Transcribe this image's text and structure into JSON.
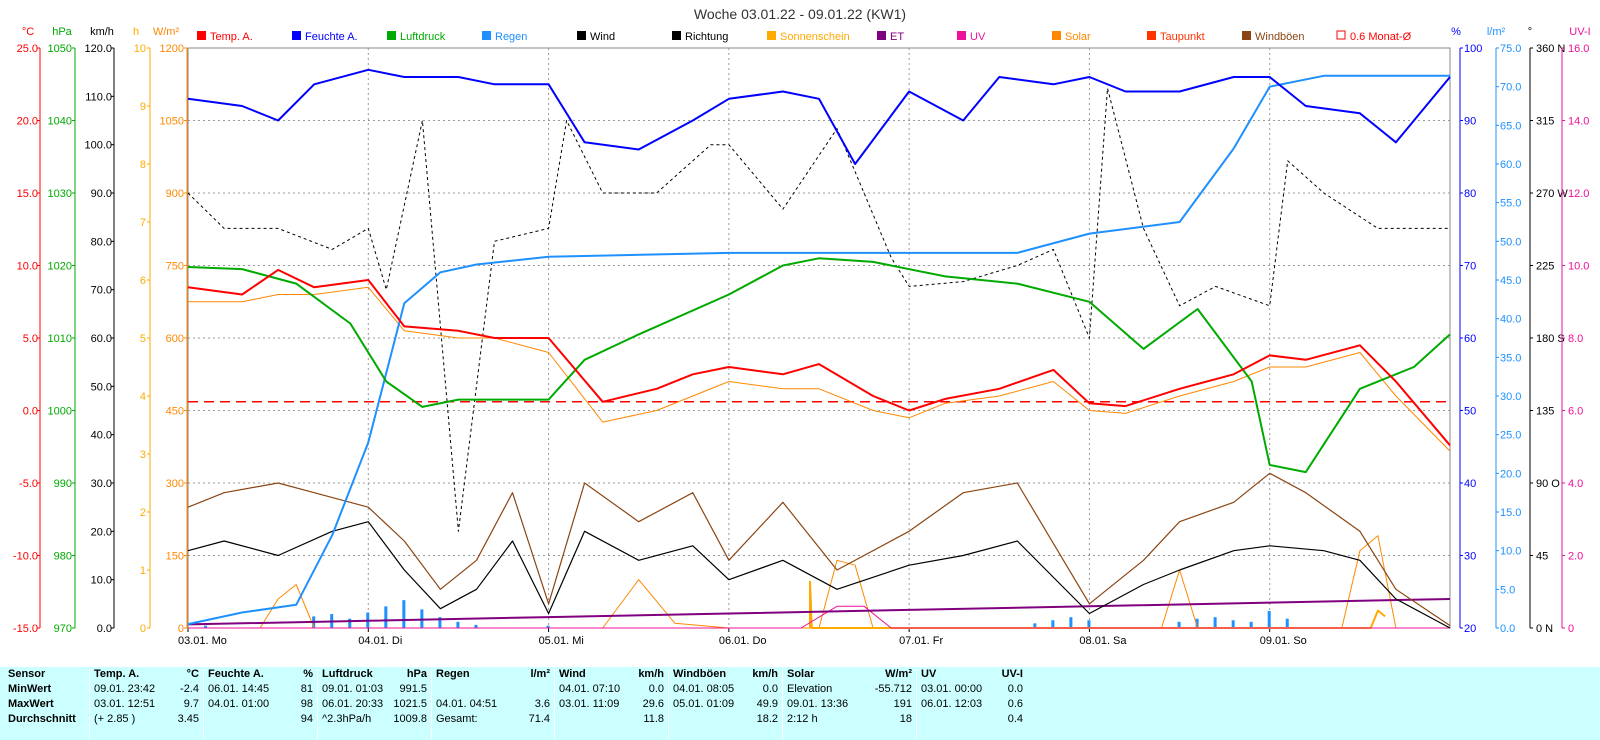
{
  "title": "Woche 03.01.22 - 09.01.22 (KW1)",
  "colors": {
    "temp": "#ff0000",
    "humidity": "#0000ff",
    "pressure": "#00aa00",
    "rain": "#1e90ff",
    "wind": "#000000",
    "direction": "#000000",
    "sunshine": "#ffaa00",
    "et": "#800080",
    "uv": "#ee1199",
    "solar": "#ff8800",
    "dewpoint": "#ff3300",
    "gusts": "#8b4513",
    "avg": "#ff0000",
    "stats_bg": "#ccffff"
  },
  "legend": [
    {
      "key": "temp",
      "label": "Temp. A."
    },
    {
      "key": "humidity",
      "label": "Feuchte A."
    },
    {
      "key": "pressure",
      "label": "Luftdruck"
    },
    {
      "key": "rain",
      "label": "Regen"
    },
    {
      "key": "wind",
      "label": "Wind"
    },
    {
      "key": "direction",
      "label": "Richtung"
    },
    {
      "key": "sunshine",
      "label": "Sonnenschein"
    },
    {
      "key": "et",
      "label": "ET"
    },
    {
      "key": "uv",
      "label": "UV"
    },
    {
      "key": "solar",
      "label": "Solar"
    },
    {
      "key": "dewpoint",
      "label": "Taupunkt"
    },
    {
      "key": "gusts",
      "label": "Windböen"
    },
    {
      "key": "avg",
      "label": "0.6 Monat-Ø"
    }
  ],
  "axes": {
    "temp": {
      "unit": "°C",
      "ticks": [
        "25.0",
        "20.0",
        "15.0",
        "10.0",
        "5.0",
        "0.0",
        "-5.0",
        "-10.0",
        "-15.0"
      ]
    },
    "pressure": {
      "unit": "hPa",
      "ticks": [
        "1050",
        "1040",
        "1030",
        "1020",
        "1010",
        "1000",
        "990",
        "980",
        "970"
      ]
    },
    "wind": {
      "unit": "km/h",
      "ticks": [
        "120.0",
        "110.0",
        "100.0",
        "90.0",
        "80.0",
        "70.0",
        "60.0",
        "50.0",
        "40.0",
        "30.0",
        "20.0",
        "10.0",
        "0.0"
      ]
    },
    "sunshine": {
      "unit": "h",
      "ticks": [
        "10",
        "9",
        "8",
        "7",
        "6",
        "5",
        "4",
        "3",
        "2",
        "1",
        "0"
      ]
    },
    "solar": {
      "unit": "W/m²",
      "ticks": [
        "1200",
        "1050",
        "900",
        "750",
        "600",
        "450",
        "300",
        "150",
        "0"
      ]
    },
    "humidity": {
      "unit": "%",
      "ticks": [
        "100",
        "90",
        "80",
        "70",
        "60",
        "50",
        "40",
        "30",
        "20"
      ]
    },
    "rain": {
      "unit": "l/m²",
      "ticks": [
        "75.0",
        "70.0",
        "65.0",
        "60.0",
        "55.0",
        "50.0",
        "45.0",
        "40.0",
        "35.0",
        "30.0",
        "25.0",
        "20.0",
        "15.0",
        "10.0",
        "5.0",
        "0.0"
      ]
    },
    "direction": {
      "unit": "°",
      "ticks": [
        "360 N",
        "315",
        "270 W",
        "225",
        "180 S",
        "135",
        "90 O",
        "45",
        "0 N"
      ]
    },
    "uvi": {
      "unit": "UV-I",
      "ticks": [
        "16.0",
        "14.0",
        "12.0",
        "10.0",
        "8.0",
        "6.0",
        "4.0",
        "2.0",
        "0"
      ]
    }
  },
  "x_labels": [
    "03.01.  Mo",
    "04.01.  Di",
    "05.01.  Mi",
    "06.01.  Do",
    "07.01.  Fr",
    "08.01.  Sa",
    "09.01.  So"
  ],
  "chart_data": {
    "type": "line",
    "title": "Woche 03.01.22 - 09.01.22 (KW1)",
    "x_unit": "day index (0 = 03.01. 00:00, 7 = 10.01. 00:00)",
    "categories": [
      "03.01.  Mo",
      "04.01.  Di",
      "05.01.  Mi",
      "06.01.  Do",
      "07.01.  Fr",
      "08.01.  Sa",
      "09.01.  So"
    ],
    "monthly_avg_temp": 0.6,
    "series": [
      {
        "name": "Temp. A.",
        "axis": "temp",
        "x": [
          0,
          0.3,
          0.5,
          0.7,
          1.0,
          1.2,
          1.5,
          1.7,
          2.0,
          2.3,
          2.6,
          2.8,
          3.0,
          3.3,
          3.5,
          3.8,
          4.0,
          4.2,
          4.5,
          4.8,
          5.0,
          5.2,
          5.5,
          5.8,
          6.0,
          6.2,
          6.5,
          6.7,
          7.0
        ],
        "y": [
          8.5,
          8.0,
          9.7,
          8.5,
          9.0,
          5.8,
          5.5,
          5.0,
          5.0,
          0.6,
          1.5,
          2.5,
          3.0,
          2.5,
          3.2,
          1.0,
          0.0,
          0.8,
          1.5,
          2.8,
          0.5,
          0.3,
          1.5,
          2.5,
          3.8,
          3.5,
          4.5,
          2.0,
          -2.4
        ]
      },
      {
        "name": "Taupunkt",
        "axis": "temp",
        "x": [
          0,
          0.3,
          0.5,
          0.7,
          1.0,
          1.2,
          1.5,
          1.7,
          2.0,
          2.3,
          2.6,
          2.8,
          3.0,
          3.3,
          3.5,
          3.8,
          4.0,
          4.2,
          4.5,
          4.8,
          5.0,
          5.2,
          5.5,
          5.8,
          6.0,
          6.2,
          6.5,
          6.7,
          7.0
        ],
        "y": [
          7.5,
          7.5,
          8.0,
          8.0,
          8.5,
          5.5,
          5.0,
          5.0,
          4.0,
          -0.8,
          0.0,
          1.0,
          2.0,
          1.5,
          1.5,
          0.0,
          -0.5,
          0.5,
          1.0,
          2.0,
          0.0,
          -0.2,
          1.0,
          2.0,
          3.0,
          3.0,
          4.0,
          1.0,
          -2.8
        ]
      },
      {
        "name": "Feuchte A.",
        "axis": "humidity",
        "x": [
          0,
          0.3,
          0.5,
          0.7,
          1.0,
          1.2,
          1.5,
          1.7,
          2.0,
          2.2,
          2.5,
          2.8,
          3.0,
          3.3,
          3.5,
          3.7,
          4.0,
          4.3,
          4.5,
          4.8,
          5.0,
          5.2,
          5.5,
          5.8,
          6.0,
          6.2,
          6.5,
          6.7,
          7.0
        ],
        "y": [
          93,
          92,
          90,
          95,
          97,
          96,
          96,
          95,
          95,
          87,
          86,
          90,
          93,
          94,
          93,
          84,
          94,
          90,
          96,
          95,
          96,
          94,
          94,
          96,
          96,
          92,
          91,
          87,
          96
        ]
      },
      {
        "name": "Luftdruck",
        "axis": "pressure",
        "x": [
          0,
          0.3,
          0.6,
          0.9,
          1.1,
          1.3,
          1.5,
          2.0,
          2.2,
          2.5,
          3.0,
          3.3,
          3.5,
          3.8,
          4.2,
          4.6,
          5.0,
          5.3,
          5.6,
          5.9,
          6.0,
          6.2,
          6.5,
          6.8,
          7.0
        ],
        "y": [
          1019.8,
          1019.5,
          1017.5,
          1012.0,
          1004.0,
          1000.5,
          1001.5,
          1001.5,
          1007.0,
          1010.5,
          1016.0,
          1020.0,
          1021.0,
          1020.5,
          1018.5,
          1017.5,
          1015.0,
          1008.5,
          1014.0,
          1004.0,
          992.5,
          991.5,
          1003.0,
          1006.0,
          1010.5
        ]
      },
      {
        "name": "Regen",
        "axis": "rain",
        "x": [
          0,
          0.3,
          0.6,
          0.8,
          1.0,
          1.2,
          1.4,
          1.6,
          2.0,
          3.0,
          4.0,
          4.6,
          5.0,
          5.5,
          5.8,
          6.0,
          6.3,
          7.0
        ],
        "y": [
          0.5,
          2.0,
          3.0,
          12.0,
          24.0,
          42.0,
          46.0,
          47.0,
          48.0,
          48.5,
          48.5,
          48.5,
          51.0,
          52.5,
          62.0,
          70.0,
          71.4,
          71.4
        ]
      },
      {
        "name": "Wind",
        "axis": "wind",
        "x": [
          0,
          0.2,
          0.5,
          0.8,
          1.0,
          1.2,
          1.4,
          1.6,
          1.8,
          2.0,
          2.2,
          2.5,
          2.8,
          3.0,
          3.3,
          3.6,
          4.0,
          4.3,
          4.6,
          5.0,
          5.3,
          5.5,
          5.8,
          6.0,
          6.3,
          6.5,
          6.7,
          7.0
        ],
        "y": [
          16.0,
          18.0,
          15.0,
          20.0,
          22.0,
          12.0,
          4.0,
          8.0,
          18.0,
          3.0,
          20.0,
          14.0,
          17.0,
          10.0,
          14.0,
          8.0,
          13.0,
          15.0,
          18.0,
          3.0,
          9.0,
          12.0,
          16.0,
          17.0,
          16.0,
          14.0,
          6.0,
          0.0
        ]
      },
      {
        "name": "Windböen",
        "axis": "wind",
        "x": [
          0,
          0.2,
          0.5,
          0.7,
          1.0,
          1.2,
          1.4,
          1.6,
          1.8,
          2.0,
          2.2,
          2.5,
          2.8,
          3.0,
          3.3,
          3.6,
          4.0,
          4.3,
          4.6,
          5.0,
          5.3,
          5.5,
          5.8,
          6.0,
          6.2,
          6.5,
          6.7,
          7.0
        ],
        "y": [
          25.0,
          28.0,
          30.0,
          28.0,
          25.0,
          18.0,
          8.0,
          14.0,
          28.0,
          5.0,
          30.0,
          22.0,
          28.0,
          14.0,
          26.0,
          12.0,
          20.0,
          28.0,
          30.0,
          5.0,
          14.0,
          22.0,
          26.0,
          32.0,
          28.0,
          20.0,
          8.0,
          0.5
        ]
      },
      {
        "name": "Richtung",
        "axis": "direction",
        "x": [
          0,
          0.2,
          0.5,
          0.8,
          1.0,
          1.1,
          1.3,
          1.5,
          1.7,
          2.0,
          2.1,
          2.3,
          2.6,
          2.9,
          3.0,
          3.3,
          3.6,
          3.9,
          4.0,
          4.3,
          4.6,
          4.8,
          5.0,
          5.1,
          5.3,
          5.5,
          5.7,
          6.0,
          6.1,
          6.3,
          6.6,
          7.0
        ],
        "y": [
          270,
          248,
          248,
          235,
          248,
          210,
          315,
          60,
          240,
          248,
          315,
          270,
          270,
          300,
          300,
          260,
          310,
          230,
          212,
          215,
          225,
          235,
          180,
          335,
          248,
          200,
          212,
          200,
          290,
          270,
          248,
          248
        ]
      },
      {
        "name": "Solar",
        "axis": "solar",
        "x": [
          0,
          0.4,
          0.5,
          0.6,
          0.7,
          1.0,
          2.0,
          2.3,
          2.5,
          2.7,
          3.0,
          3.5,
          3.6,
          3.7,
          3.8,
          4.0,
          5.0,
          5.4,
          5.5,
          5.6,
          6.0,
          6.4,
          6.5,
          6.6,
          6.7,
          7.0
        ],
        "y": [
          0,
          0,
          60,
          90,
          0,
          0,
          0,
          0,
          100,
          10,
          0,
          0,
          140,
          130,
          0,
          0,
          0,
          0,
          120,
          0,
          0,
          0,
          160,
          191,
          0,
          0
        ]
      },
      {
        "name": "Sonnenschein",
        "axis": "sunshine",
        "x": [
          3.45,
          3.45,
          3.46,
          6.56,
          6.6,
          6.64
        ],
        "y": [
          0,
          0.8,
          0,
          0,
          0.3,
          0.2
        ]
      },
      {
        "name": "ET",
        "axis": "uvi",
        "x": [
          0,
          1.0,
          2.0,
          3.0,
          4.0,
          5.0,
          6.0,
          7.0
        ],
        "y": [
          0.1,
          0.2,
          0.3,
          0.4,
          0.5,
          0.6,
          0.7,
          0.8
        ]
      },
      {
        "name": "UV",
        "axis": "uvi",
        "x": [
          0,
          3.4,
          3.6,
          3.75,
          3.9,
          7.0
        ],
        "y": [
          0,
          0,
          0.6,
          0.6,
          0,
          0
        ]
      }
    ],
    "rain_bars": {
      "axis": "rain",
      "x": [
        0.1,
        0.7,
        0.8,
        0.9,
        1.0,
        1.1,
        1.2,
        1.3,
        1.4,
        1.5,
        1.6,
        2.0,
        4.7,
        4.8,
        4.9,
        5.0,
        5.5,
        5.6,
        5.7,
        5.8,
        5.9,
        6.0,
        6.1
      ],
      "y": [
        0.3,
        1.5,
        1.8,
        1.2,
        2.0,
        2.8,
        3.6,
        2.4,
        1.4,
        0.8,
        0.4,
        0.3,
        0.6,
        1.0,
        1.4,
        1.0,
        0.8,
        1.2,
        1.4,
        1.0,
        0.8,
        2.2,
        1.2
      ]
    }
  },
  "stats": {
    "sensor": {
      "header": "Sensor",
      "min": "MinWert",
      "max": "MaxWert",
      "avg": "Durchschnitt"
    },
    "temp": {
      "header": "Temp. A.",
      "unit": "°C",
      "min_time": "09.01.  23:42",
      "min": "-2.4",
      "max_time": "03.01.  12:51",
      "max": "9.7",
      "avg_note": "(+ 2.85 )",
      "avg": "3.45"
    },
    "humidity": {
      "header": "Feuchte A.",
      "unit": "%",
      "min_time": "06.01.  14:45",
      "min": "81",
      "max_time": "04.01.  01:00",
      "max": "98",
      "avg": "94"
    },
    "pressure": {
      "header": "Luftdruck",
      "unit": "hPa",
      "min_time": "09.01.  01:03",
      "min": "991.5",
      "max_time": "06.01.  20:33",
      "max": "1021.5",
      "avg_note": "^2.3hPa/h",
      "avg": "1009.8"
    },
    "rain": {
      "header": "Regen",
      "unit": "l/m²",
      "max_time": "04.01.  04:51",
      "max": "3.6",
      "avg_note": "Gesamt:",
      "avg": "71.4"
    },
    "wind": {
      "header": "Wind",
      "unit": "km/h",
      "min_time": "04.01.  07:10",
      "min": "0.0",
      "max_time": "03.01.  11:09",
      "max": "29.6",
      "avg": "11.8"
    },
    "gusts": {
      "header": "Windböen",
      "unit": "km/h",
      "min_time": "04.01.  08:05",
      "min": "0.0",
      "max_time": "05.01.  01:09",
      "max": "49.9",
      "avg": "18.2"
    },
    "solar": {
      "header": "Solar",
      "unit": "W/m²",
      "min_time": "Elevation",
      "min": "-55.712",
      "max_time": "09.01.  13:36",
      "max": "191",
      "avg_note": "2:12 h",
      "avg": "18"
    },
    "uv": {
      "header": "UV",
      "unit": "UV-I",
      "min_time": "03.01.  00:00",
      "min": "0.0",
      "max_time": "06.01.  12:03",
      "max": "0.6",
      "avg": "0.4"
    }
  }
}
